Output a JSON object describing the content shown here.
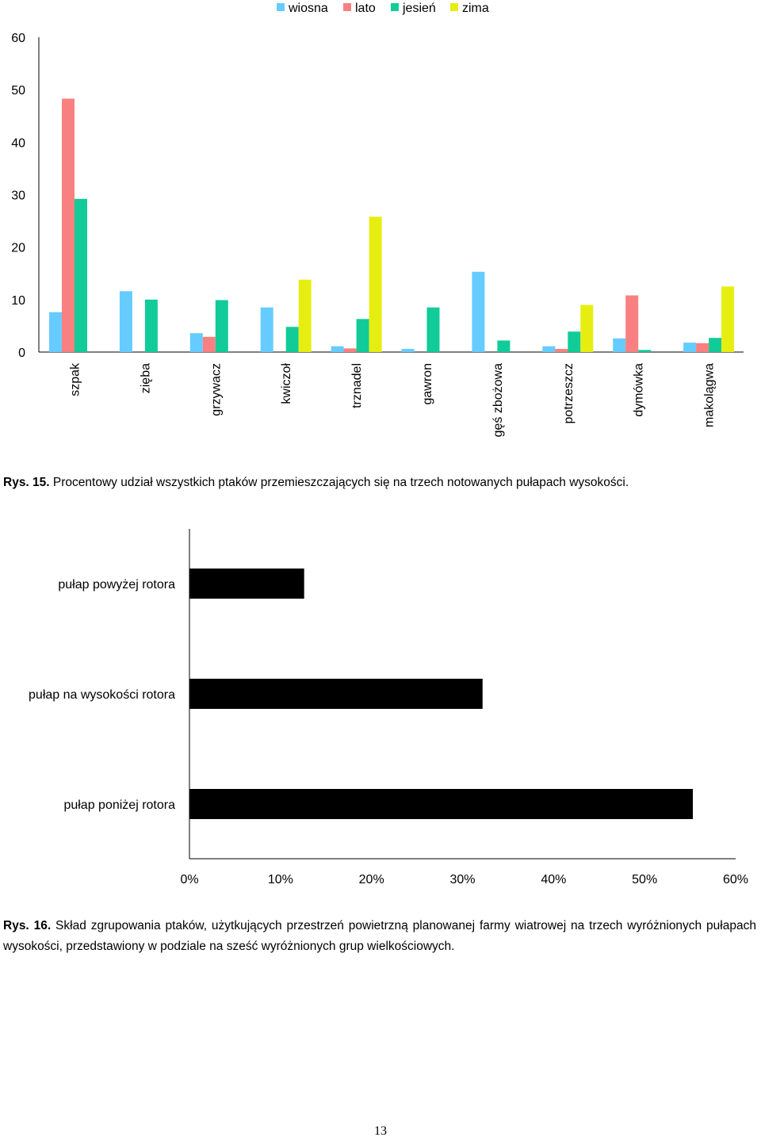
{
  "chart_data": [
    {
      "type": "bar",
      "categories": [
        "szpak",
        "zięba",
        "grzywacz",
        "kwiczoł",
        "trznadel",
        "gawron",
        "gęś zbożowa",
        "potrzeszcz",
        "dymówka",
        "makolągwa"
      ],
      "series": [
        {
          "name": "wiosna",
          "color": "#66ccff",
          "values": [
            7.6,
            11.6,
            3.6,
            8.5,
            1.1,
            0.6,
            15.3,
            1.1,
            2.6,
            1.8
          ]
        },
        {
          "name": "lato",
          "color": "#f98080",
          "values": [
            48.3,
            0,
            2.9,
            0,
            0.7,
            0,
            0,
            0.6,
            10.8,
            1.7
          ]
        },
        {
          "name": "jesień",
          "color": "#11cc99",
          "values": [
            29.2,
            10.0,
            9.9,
            4.8,
            6.3,
            8.5,
            2.2,
            3.9,
            0.4,
            2.7
          ]
        },
        {
          "name": "zima",
          "color": "#e6ee11",
          "values": [
            0,
            0,
            0,
            13.8,
            25.8,
            0,
            0,
            9.0,
            0,
            12.5
          ]
        }
      ],
      "ylim": [
        0,
        60
      ],
      "yticks": [
        "0",
        "10",
        "20",
        "30",
        "40",
        "50",
        "60"
      ],
      "legend_position": "top-center",
      "grid": false
    },
    {
      "type": "bar",
      "orientation": "horizontal",
      "categories": [
        "pułap powyżej rotora",
        "pułap na wysokości rotora",
        "pułap poniżej rotora"
      ],
      "values": [
        12.6,
        32.2,
        55.3
      ],
      "bar_color": "#000000",
      "xlim": [
        0,
        60
      ],
      "xticks": [
        "0%",
        "10%",
        "20%",
        "30%",
        "40%",
        "50%",
        "60%"
      ],
      "grid": false
    }
  ],
  "captions": {
    "fig15_label": "Rys. 15.",
    "fig15_text": " Procentowy udział wszystkich ptaków przemieszczających się na trzech notowanych pułapach wysokości.",
    "fig16_label": "Rys. 16.",
    "fig16_text": " Skład zgrupowania ptaków, użytkujących przestrzeń powietrzną planowanej farmy wiatrowej na trzech wyróżnionych pułapach wysokości, przedstawiony w podziale na sześć wyróżnionych grup wielkościowych."
  },
  "page_number": "13"
}
